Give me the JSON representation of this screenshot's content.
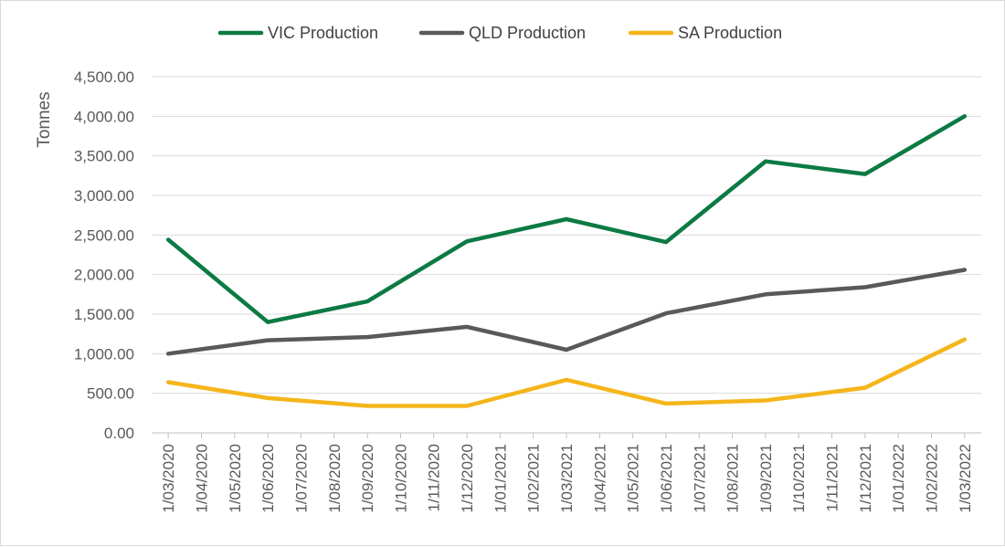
{
  "chart_data": {
    "type": "line",
    "ylabel": "Tonnes",
    "xlabel": "",
    "ylim": [
      0,
      4500
    ],
    "y_ticks": [
      "0.00",
      "500.00",
      "1,000.00",
      "1,500.00",
      "2,000.00",
      "2,500.00",
      "3,000.00",
      "3,500.00",
      "4,000.00",
      "4,500.00"
    ],
    "categories": [
      "1/03/2020",
      "1/04/2020",
      "1/05/2020",
      "1/06/2020",
      "1/07/2020",
      "1/08/2020",
      "1/09/2020",
      "1/10/2020",
      "1/11/2020",
      "1/12/2020",
      "1/01/2021",
      "1/02/2021",
      "1/03/2021",
      "1/04/2021",
      "1/05/2021",
      "1/06/2021",
      "1/07/2021",
      "1/08/2021",
      "1/09/2021",
      "1/10/2021",
      "1/11/2021",
      "1/12/2021",
      "1/01/2022",
      "1/02/2022",
      "1/03/2022"
    ],
    "grid": true,
    "legend_position": "top",
    "series": [
      {
        "name": "VIC Production",
        "color": "#0b7a43",
        "points": [
          [
            0,
            2440
          ],
          [
            3,
            1400
          ],
          [
            6,
            1660
          ],
          [
            9,
            2420
          ],
          [
            12,
            2700
          ],
          [
            15,
            2410
          ],
          [
            18,
            3430
          ],
          [
            21,
            3270
          ],
          [
            24,
            4000
          ]
        ]
      },
      {
        "name": "QLD Production",
        "color": "#595959",
        "points": [
          [
            0,
            1000
          ],
          [
            3,
            1170
          ],
          [
            6,
            1210
          ],
          [
            9,
            1340
          ],
          [
            12,
            1050
          ],
          [
            15,
            1510
          ],
          [
            18,
            1750
          ],
          [
            21,
            1840
          ],
          [
            24,
            2060
          ]
        ]
      },
      {
        "name": "SA Production",
        "color": "#f5b51b",
        "points": [
          [
            0,
            640
          ],
          [
            3,
            440
          ],
          [
            6,
            340
          ],
          [
            9,
            340
          ],
          [
            12,
            670
          ],
          [
            15,
            370
          ],
          [
            18,
            410
          ],
          [
            21,
            570
          ],
          [
            24,
            1180
          ]
        ]
      }
    ]
  }
}
